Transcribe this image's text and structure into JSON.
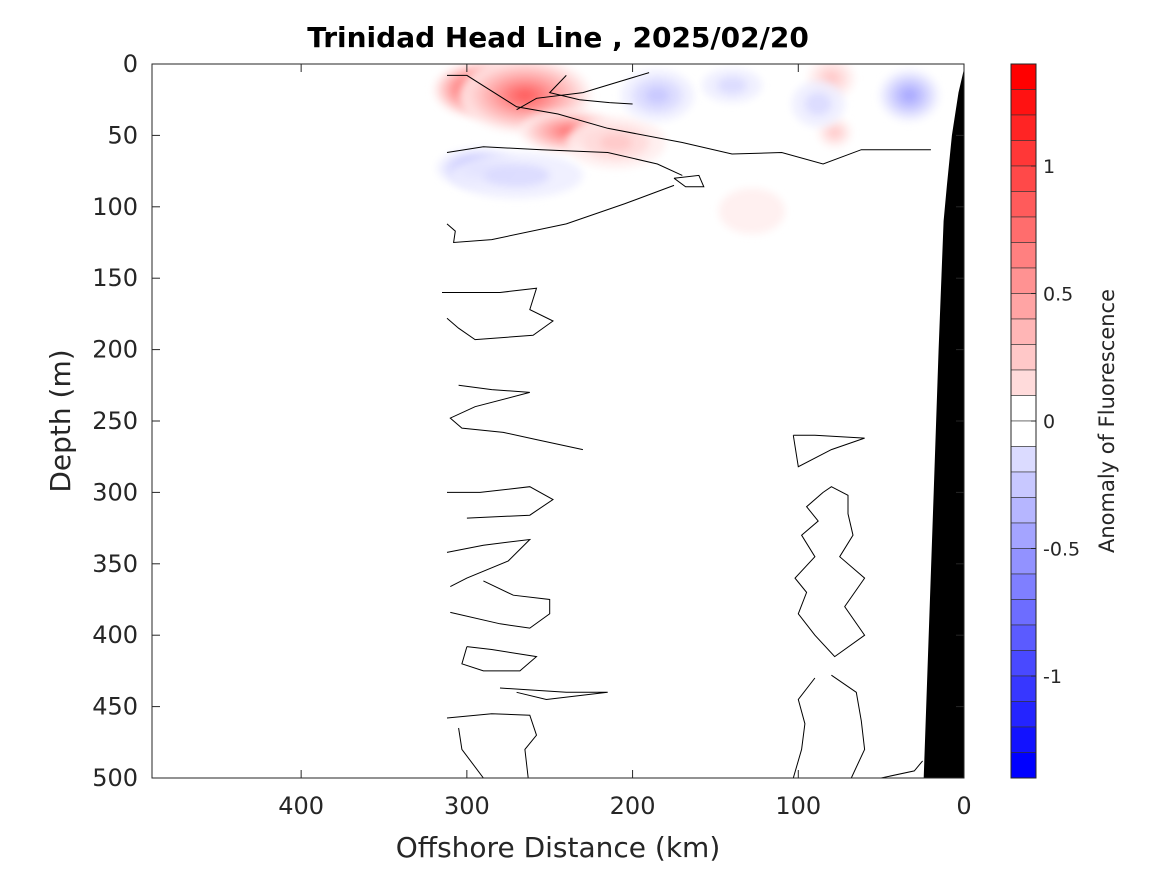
{
  "chart_data": {
    "type": "contour",
    "title": "Trinidad Head Line , 2025/02/20",
    "xlabel": "Offshore Distance (km)",
    "ylabel": "Depth (m)",
    "colorbar_label": "Anomaly of Fluorescence",
    "xlim": [
      490,
      0
    ],
    "x_reversed": true,
    "ylim": [
      0,
      500
    ],
    "y_reversed": true,
    "xticks": [
      400,
      300,
      200,
      100,
      0
    ],
    "xtick_labels": [
      "400",
      "300",
      "200",
      "100",
      "0"
    ],
    "yticks": [
      0,
      50,
      100,
      150,
      200,
      250,
      300,
      350,
      400,
      450,
      500
    ],
    "ytick_labels": [
      "0",
      "50",
      "100",
      "150",
      "200",
      "250",
      "300",
      "350",
      "400",
      "450",
      "500"
    ],
    "colorbar": {
      "range": [
        -1.4,
        1.4
      ],
      "step": 0.1,
      "ticks": [
        1,
        0.5,
        0,
        -0.5,
        -1
      ],
      "tick_labels": [
        "1",
        "0.5",
        "0",
        "-0.5",
        "-1"
      ],
      "colormap": "blue-white-red",
      "neg_color": "#0000ff",
      "pos_color": "#ff0000"
    },
    "data_extent_x": [
      0,
      310
    ],
    "anomalies": [
      {
        "x": 290,
        "depth": 18,
        "value": 1.35,
        "rx": 30,
        "rd": 20
      },
      {
        "x": 265,
        "depth": 22,
        "value": 0.85,
        "rx": 40,
        "rd": 26
      },
      {
        "x": 238,
        "depth": 47,
        "value": 0.75,
        "rx": 30,
        "rd": 15
      },
      {
        "x": 210,
        "depth": 55,
        "value": 0.3,
        "rx": 30,
        "rd": 18
      },
      {
        "x": 80,
        "depth": 10,
        "value": 0.35,
        "rx": 14,
        "rd": 14
      },
      {
        "x": 78,
        "depth": 48,
        "value": 0.25,
        "rx": 10,
        "rd": 10
      },
      {
        "x": 128,
        "depth": 103,
        "value": 0.15,
        "rx": 20,
        "rd": 16
      },
      {
        "x": 185,
        "depth": 22,
        "value": -0.35,
        "rx": 22,
        "rd": 18
      },
      {
        "x": 140,
        "depth": 15,
        "value": -0.2,
        "rx": 18,
        "rd": 12
      },
      {
        "x": 88,
        "depth": 28,
        "value": -0.2,
        "rx": 16,
        "rd": 16
      },
      {
        "x": 33,
        "depth": 22,
        "value": -0.5,
        "rx": 18,
        "rd": 18
      },
      {
        "x": 293,
        "depth": 73,
        "value": -0.45,
        "rx": 25,
        "rd": 14
      },
      {
        "x": 270,
        "depth": 78,
        "value": -0.2,
        "rx": 40,
        "rd": 16
      }
    ],
    "zero_contours": [
      [
        [
          312,
          8
        ],
        [
          300,
          8
        ],
        [
          270,
          30
        ],
        [
          245,
          35
        ],
        [
          215,
          45
        ],
        [
          170,
          55
        ],
        [
          140,
          63
        ],
        [
          110,
          62
        ],
        [
          85,
          70
        ],
        [
          62,
          60
        ],
        [
          40,
          60
        ],
        [
          20,
          60
        ]
      ],
      [
        [
          312,
          62
        ],
        [
          290,
          58
        ],
        [
          255,
          60
        ],
        [
          215,
          62
        ],
        [
          185,
          70
        ],
        [
          170,
          78
        ]
      ],
      [
        [
          190,
          6
        ],
        [
          230,
          20
        ],
        [
          258,
          24
        ],
        [
          270,
          32
        ]
      ],
      [
        [
          240,
          8
        ],
        [
          250,
          20
        ],
        [
          232,
          25
        ],
        [
          214,
          27
        ],
        [
          200,
          28
        ]
      ],
      [
        [
          175,
          80
        ],
        [
          168,
          86
        ],
        [
          157,
          86
        ],
        [
          160,
          78
        ],
        [
          175,
          80
        ]
      ],
      [
        [
          312,
          112
        ],
        [
          307,
          117
        ],
        [
          308,
          125
        ],
        [
          285,
          123
        ],
        [
          240,
          112
        ],
        [
          205,
          98
        ],
        [
          175,
          85
        ]
      ],
      [
        [
          315,
          160
        ],
        [
          280,
          160
        ],
        [
          258,
          157
        ],
        [
          262,
          172
        ],
        [
          248,
          180
        ],
        [
          260,
          190
        ],
        [
          295,
          193
        ],
        [
          305,
          185
        ],
        [
          312,
          178
        ]
      ],
      [
        [
          305,
          225
        ],
        [
          285,
          228
        ],
        [
          262,
          230
        ],
        [
          295,
          240
        ],
        [
          310,
          248
        ],
        [
          303,
          255
        ],
        [
          278,
          258
        ],
        [
          258,
          263
        ],
        [
          230,
          270
        ]
      ],
      [
        [
          312,
          300
        ],
        [
          292,
          300
        ],
        [
          262,
          296
        ],
        [
          248,
          305
        ],
        [
          262,
          316
        ],
        [
          300,
          318
        ]
      ],
      [
        [
          312,
          342
        ],
        [
          290,
          337
        ],
        [
          262,
          333
        ],
        [
          275,
          348
        ],
        [
          300,
          360
        ],
        [
          310,
          366
        ]
      ],
      [
        [
          310,
          384
        ],
        [
          280,
          392
        ],
        [
          262,
          395
        ],
        [
          250,
          385
        ],
        [
          250,
          375
        ],
        [
          272,
          372
        ],
        [
          290,
          362
        ]
      ],
      [
        [
          300,
          408
        ],
        [
          285,
          410
        ],
        [
          258,
          415
        ],
        [
          268,
          425
        ],
        [
          290,
          425
        ],
        [
          303,
          420
        ],
        [
          300,
          408
        ]
      ],
      [
        [
          280,
          437
        ],
        [
          240,
          440
        ],
        [
          215,
          440
        ],
        [
          252,
          445
        ],
        [
          270,
          440
        ]
      ],
      [
        [
          312,
          458
        ],
        [
          285,
          455
        ],
        [
          262,
          456
        ],
        [
          258,
          470
        ],
        [
          265,
          480
        ],
        [
          263,
          500
        ]
      ],
      [
        [
          305,
          465
        ],
        [
          303,
          480
        ],
        [
          290,
          500
        ]
      ],
      [
        [
          103,
          260
        ],
        [
          90,
          260
        ],
        [
          60,
          262
        ],
        [
          80,
          270
        ],
        [
          100,
          282
        ],
        [
          103,
          260
        ]
      ],
      [
        [
          85,
          300
        ],
        [
          80,
          296
        ],
        [
          70,
          302
        ],
        [
          70,
          315
        ],
        [
          67,
          330
        ],
        [
          75,
          345
        ],
        [
          60,
          360
        ],
        [
          72,
          380
        ],
        [
          60,
          400
        ],
        [
          78,
          415
        ],
        [
          90,
          400
        ],
        [
          100,
          385
        ],
        [
          95,
          370
        ],
        [
          102,
          360
        ],
        [
          90,
          345
        ],
        [
          98,
          330
        ],
        [
          88,
          320
        ],
        [
          95,
          310
        ],
        [
          85,
          300
        ]
      ],
      [
        [
          90,
          430
        ],
        [
          100,
          445
        ],
        [
          96,
          462
        ],
        [
          98,
          480
        ],
        [
          103,
          500
        ]
      ],
      [
        [
          80,
          428
        ],
        [
          65,
          440
        ],
        [
          62,
          460
        ],
        [
          60,
          480
        ],
        [
          68,
          500
        ]
      ],
      [
        [
          50,
          500
        ],
        [
          30,
          495
        ],
        [
          25,
          488
        ]
      ]
    ],
    "bathymetry": [
      [
        24,
        500
      ],
      [
        21,
        400
      ],
      [
        18,
        300
      ],
      [
        15,
        200
      ],
      [
        12,
        110
      ],
      [
        10,
        85
      ],
      [
        7,
        50
      ],
      [
        3,
        20
      ],
      [
        0,
        5
      ],
      [
        0,
        500
      ]
    ]
  }
}
